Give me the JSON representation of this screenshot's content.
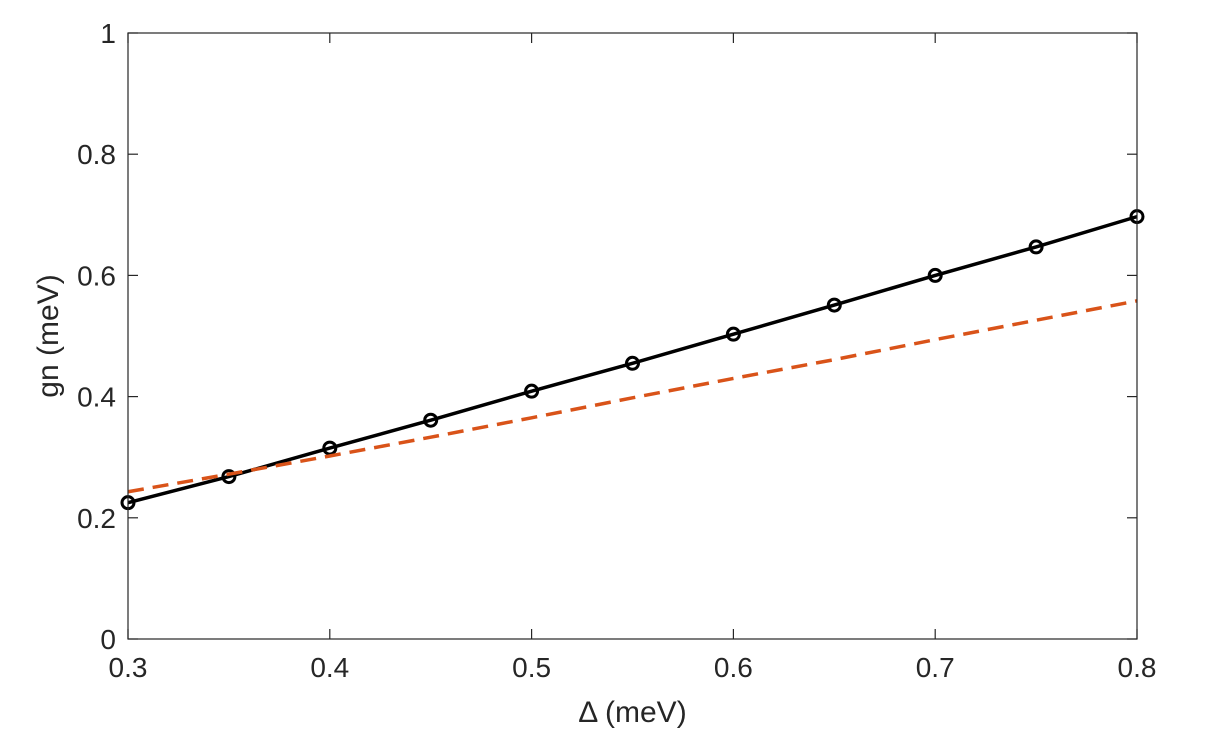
{
  "chart_data": {
    "type": "line",
    "title": "",
    "xlabel": "Δ (meV)",
    "ylabel": "gn (meV)",
    "xlim": [
      0.3,
      0.8
    ],
    "ylim": [
      0,
      1
    ],
    "x_ticks": [
      "0.3",
      "0.4",
      "0.5",
      "0.6",
      "0.7",
      "0.8"
    ],
    "y_ticks": [
      "0",
      "0.2",
      "0.4",
      "0.6",
      "0.8",
      "1"
    ],
    "grid": false,
    "legend": false,
    "series": [
      {
        "style": "solid line with circle markers",
        "color": "#000000",
        "x": [
          0.3,
          0.35,
          0.4,
          0.45,
          0.5,
          0.55,
          0.6,
          0.65,
          0.7,
          0.75,
          0.8
        ],
        "y": [
          0.225,
          0.268,
          0.315,
          0.361,
          0.409,
          0.455,
          0.503,
          0.551,
          0.6,
          0.647,
          0.697
        ]
      },
      {
        "style": "dashed line",
        "color": "#D95319",
        "x": [
          0.3,
          0.35,
          0.4,
          0.45,
          0.5,
          0.55,
          0.6,
          0.65,
          0.7,
          0.75,
          0.8
        ],
        "y": [
          0.243,
          0.272,
          0.302,
          0.333,
          0.365,
          0.398,
          0.43,
          0.461,
          0.494,
          0.526,
          0.558
        ]
      }
    ]
  }
}
